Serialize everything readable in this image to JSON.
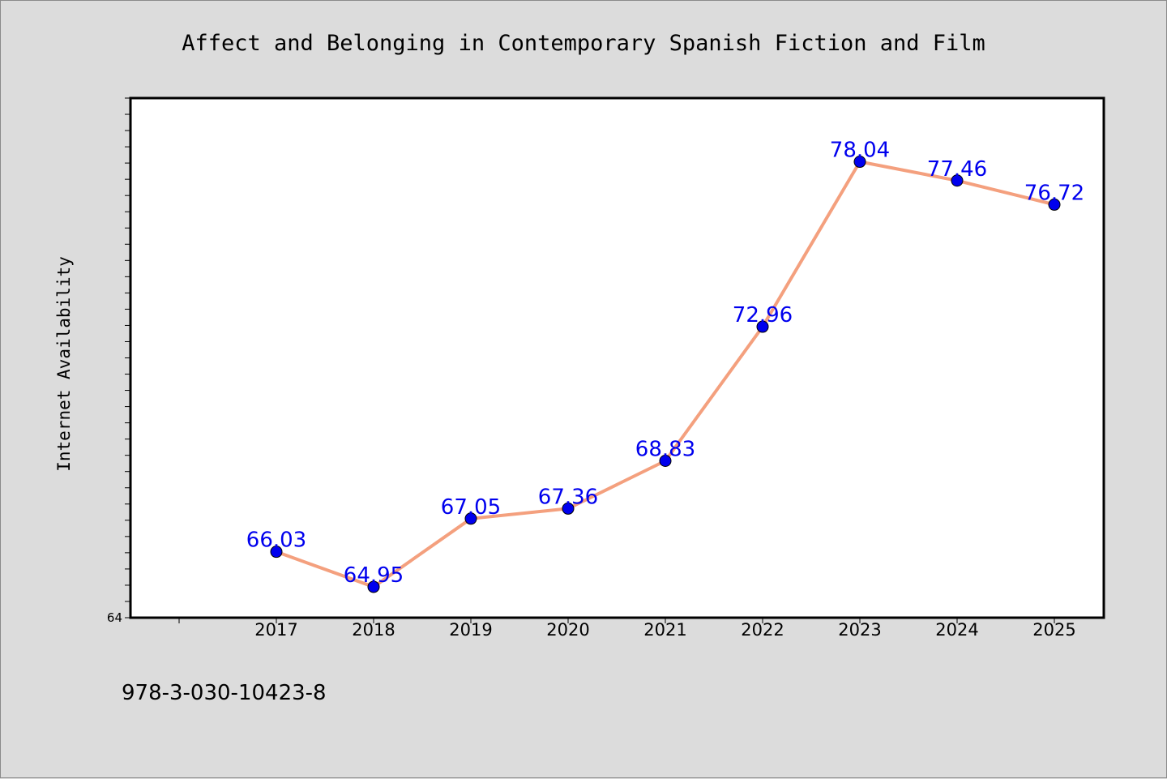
{
  "chart_data": {
    "type": "line",
    "title": "Affect and Belonging in Contemporary Spanish Fiction and Film",
    "xlabel": "",
    "ylabel": "Internet Availability",
    "categories": [
      "2017",
      "2018",
      "2019",
      "2020",
      "2021",
      "2022",
      "2023",
      "2024",
      "2025"
    ],
    "series": [
      {
        "values": [
          66.03,
          64.95,
          67.05,
          67.36,
          68.83,
          72.96,
          78.04,
          77.46,
          76.72
        ],
        "data_labels": [
          "66.03",
          "64.95",
          "67.05",
          "67.36",
          "68.83",
          "72.96",
          "78.04",
          "77.46",
          "76.72"
        ]
      }
    ],
    "ylim": [
      64,
      80
    ],
    "y_tick_labels": [
      "64"
    ],
    "grid": false,
    "legend": "none",
    "colors": {
      "line": "#f4a07e",
      "marker": "#0000ee",
      "label": "#0000ee",
      "plot_background": "#ffffff",
      "page_background": "#dcdcdc"
    }
  },
  "footer": {
    "isbn": "978-3-030-10423-8"
  }
}
